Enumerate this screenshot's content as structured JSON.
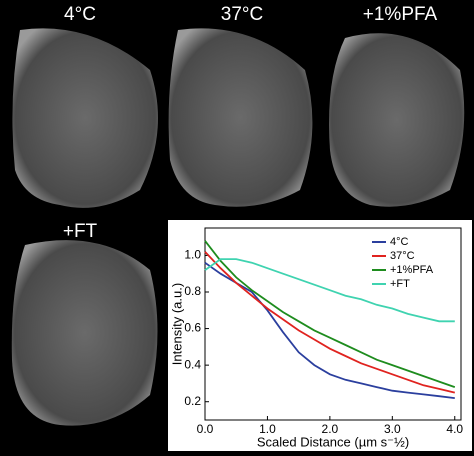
{
  "image_labels": [
    "4°C",
    "37°C",
    "+1%PFA",
    "+FT"
  ],
  "chart_data": {
    "type": "line",
    "xlabel": "Scaled Distance (µm s⁻½)",
    "ylabel": "Intensity (a.u.)",
    "x": [
      0,
      0.25,
      0.5,
      0.75,
      1.0,
      1.25,
      1.5,
      1.75,
      2.0,
      2.25,
      2.5,
      2.75,
      3.0,
      3.25,
      3.5,
      3.75,
      4.0
    ],
    "series": [
      {
        "name": "4°C",
        "color": "#2b3f9e",
        "values": [
          0.96,
          0.9,
          0.85,
          0.8,
          0.7,
          0.58,
          0.47,
          0.4,
          0.35,
          0.32,
          0.3,
          0.28,
          0.26,
          0.25,
          0.24,
          0.23,
          0.22
        ]
      },
      {
        "name": "37°C",
        "color": "#e0231f",
        "values": [
          1.02,
          0.93,
          0.85,
          0.78,
          0.71,
          0.65,
          0.59,
          0.54,
          0.49,
          0.45,
          0.41,
          0.38,
          0.35,
          0.32,
          0.29,
          0.27,
          0.25
        ]
      },
      {
        "name": "+1%PFA",
        "color": "#1e8c1e",
        "values": [
          1.08,
          0.97,
          0.88,
          0.81,
          0.75,
          0.69,
          0.64,
          0.59,
          0.55,
          0.51,
          0.47,
          0.43,
          0.4,
          0.37,
          0.34,
          0.31,
          0.28
        ]
      },
      {
        "name": "+FT",
        "color": "#3fd3b0",
        "values": [
          0.92,
          0.98,
          0.98,
          0.96,
          0.93,
          0.9,
          0.87,
          0.84,
          0.81,
          0.78,
          0.76,
          0.73,
          0.71,
          0.68,
          0.66,
          0.64,
          0.64
        ]
      }
    ],
    "xlim": [
      0,
      4.1
    ],
    "ylim": [
      0.1,
      1.15
    ],
    "xticks": [
      {
        "value": 0,
        "label": "0.0"
      },
      {
        "value": 1,
        "label": "1.0"
      },
      {
        "value": 2,
        "label": "2.0"
      },
      {
        "value": 3,
        "label": "3.0"
      },
      {
        "value": 4,
        "label": "4.0"
      }
    ],
    "yticks": [
      0.2,
      0.4,
      0.6,
      0.8,
      {
        "value": 1,
        "label": "1.0"
      }
    ],
    "legend": "upper-right"
  }
}
